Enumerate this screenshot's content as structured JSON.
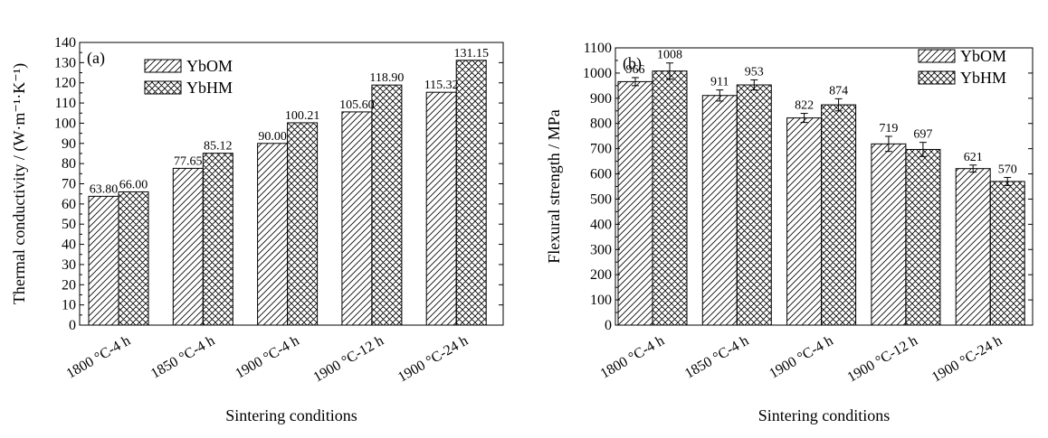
{
  "chart_data": [
    {
      "type": "bar",
      "panel_label": "(a)",
      "categories": [
        "1800 °C-4 h",
        "1850 °C-4 h",
        "1900 °C-4 h",
        "1900 °C-12 h",
        "1900 °C-24 h"
      ],
      "series": [
        {
          "name": "YbOM",
          "values": [
            63.8,
            77.65,
            90.0,
            105.6,
            115.32
          ],
          "labels": [
            "63.80",
            "77.65",
            "90.00",
            "105.60",
            "115.32"
          ]
        },
        {
          "name": "YbHM",
          "values": [
            66.0,
            85.12,
            100.21,
            118.9,
            131.15
          ],
          "labels": [
            "66.00",
            "85.12",
            "100.21",
            "118.90",
            "131.15"
          ]
        }
      ],
      "xlabel": "Sintering conditions",
      "ylabel": "Thermal conductivity / (W·m⁻¹·K⁻¹)",
      "ylim": [
        0,
        140
      ],
      "yticks": [
        0,
        10,
        20,
        30,
        40,
        50,
        60,
        70,
        80,
        90,
        100,
        110,
        120,
        130,
        140
      ],
      "legend_position": "top-center",
      "grid": false
    },
    {
      "type": "bar",
      "panel_label": "(b)",
      "categories": [
        "1800 °C-4 h",
        "1850 °C-4 h",
        "1900 °C-4 h",
        "1900 °C-12 h",
        "1900 °C-24 h"
      ],
      "series": [
        {
          "name": "YbOM",
          "values": [
            966,
            911,
            822,
            719,
            621
          ],
          "errors": [
            16,
            22,
            18,
            30,
            14
          ],
          "labels": [
            "966",
            "911",
            "822",
            "719",
            "621"
          ]
        },
        {
          "name": "YbHM",
          "values": [
            1008,
            953,
            874,
            697,
            570
          ],
          "errors": [
            32,
            20,
            24,
            28,
            16
          ],
          "labels": [
            "1008",
            "953",
            "874",
            "697",
            "570"
          ]
        }
      ],
      "xlabel": "Sintering conditions",
      "ylabel": "Flexural strength / MPa",
      "ylim": [
        0,
        1100
      ],
      "yticks": [
        0,
        100,
        200,
        300,
        400,
        500,
        600,
        700,
        800,
        900,
        1000,
        1100
      ],
      "legend_position": "top-right",
      "grid": false
    }
  ]
}
